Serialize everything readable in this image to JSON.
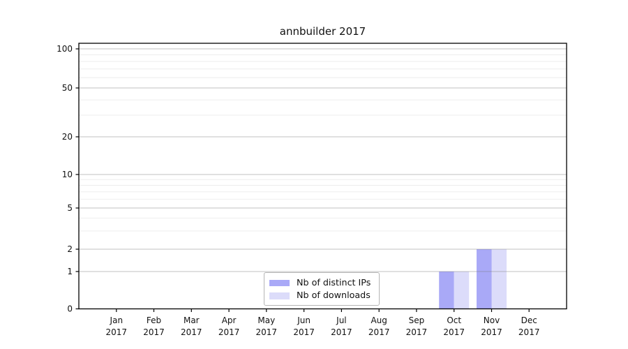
{
  "chart_data": {
    "type": "bar",
    "title": "annbuilder 2017",
    "categories": [
      "Jan",
      "Feb",
      "Mar",
      "Apr",
      "May",
      "Jun",
      "Jul",
      "Aug",
      "Sep",
      "Oct",
      "Nov",
      "Dec"
    ],
    "category_year": "2017",
    "series": [
      {
        "name": "Nb of distinct IPs",
        "color": "#a9a9f7",
        "values": [
          0,
          0,
          0,
          0,
          0,
          0,
          0,
          0,
          0,
          1,
          2,
          0
        ]
      },
      {
        "name": "Nb of downloads",
        "color": "#dcdcfa",
        "values": [
          0,
          0,
          0,
          0,
          0,
          0,
          0,
          0,
          0,
          1,
          2,
          0
        ]
      }
    ],
    "yticks": [
      0,
      1,
      2,
      5,
      10,
      20,
      50,
      100
    ],
    "minor_yticks": [
      3,
      4,
      6,
      7,
      8,
      9,
      30,
      40,
      60,
      70,
      80,
      90
    ],
    "ylim": [
      0,
      110
    ],
    "yscale": "log-like with 0 baseline",
    "xlabel": "",
    "ylabel": "",
    "grid": "horizontal",
    "legend_position": "bottom-center",
    "colors": {
      "major_grid": "#c6c6c6",
      "minor_grid": "#ededed",
      "axis": "#000000",
      "text": "#111111",
      "background": "#ffffff"
    }
  }
}
